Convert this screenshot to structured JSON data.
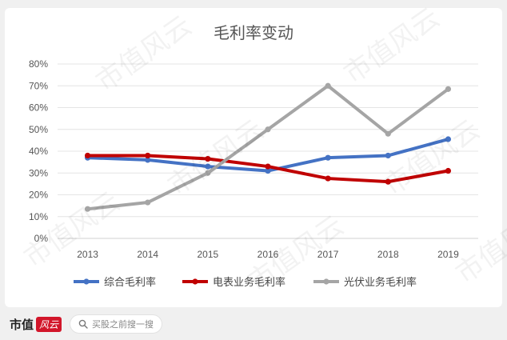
{
  "brand": {
    "name": "市值",
    "logo_text": "风云"
  },
  "search": {
    "placeholder": "买股之前搜一搜"
  },
  "watermark": "市值风云",
  "chart_data": {
    "type": "line",
    "title": "毛利率变动",
    "categories": [
      "2013",
      "2014",
      "2015",
      "2016",
      "2017",
      "2018",
      "2019"
    ],
    "y_ticks": [
      "0%",
      "10%",
      "20%",
      "30%",
      "40%",
      "50%",
      "60%",
      "70%",
      "80%"
    ],
    "ylim": [
      0,
      0.8
    ],
    "grid": true,
    "legend_position": "bottom",
    "series": [
      {
        "name": "综合毛利率",
        "color": "#4472c4",
        "values": [
          0.37,
          0.36,
          0.33,
          0.31,
          0.37,
          0.38,
          0.455
        ]
      },
      {
        "name": "电表业务毛利率",
        "color": "#c00000",
        "values": [
          0.38,
          0.38,
          0.365,
          0.33,
          0.275,
          0.26,
          0.31
        ]
      },
      {
        "name": "光伏业务毛利率",
        "color": "#a5a5a5",
        "values": [
          0.135,
          0.165,
          0.3,
          0.5,
          0.7,
          0.48,
          0.685
        ]
      }
    ]
  }
}
